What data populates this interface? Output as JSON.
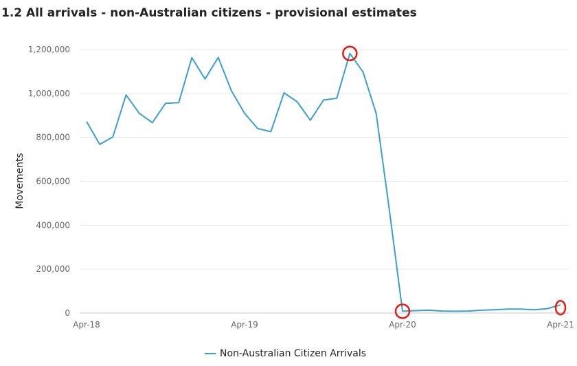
{
  "title": "1.2 All arrivals - non-Australian citizens - provisional estimates",
  "colors": {
    "series": "#3a9fd0",
    "highlight": "#e8190f",
    "grid": "#e6e6e6"
  },
  "legend": {
    "label": "Non-Australian Citizen Arrivals"
  },
  "chart_data": {
    "type": "line",
    "title": "1.2 All arrivals - non-Australian citizens - provisional estimates",
    "xlabel": "",
    "ylabel": "Movements",
    "ylim": [
      0,
      1200000
    ],
    "yticks": [
      0,
      200000,
      400000,
      600000,
      800000,
      1000000,
      1200000
    ],
    "ytick_labels": [
      "0",
      "200,000",
      "400,000",
      "600,000",
      "800,000",
      "1,000,000",
      "1,200,000"
    ],
    "xtick_labels": [
      "Apr-18",
      "Apr-19",
      "Apr-20",
      "Apr-21"
    ],
    "xtick_index": [
      0,
      12,
      24,
      36
    ],
    "grid": true,
    "legend_position": "bottom",
    "x": [
      "Apr-18",
      "May-18",
      "Jun-18",
      "Jul-18",
      "Aug-18",
      "Sep-18",
      "Oct-18",
      "Nov-18",
      "Dec-18",
      "Jan-19",
      "Feb-19",
      "Mar-19",
      "Apr-19",
      "May-19",
      "Jun-19",
      "Jul-19",
      "Aug-19",
      "Sep-19",
      "Oct-19",
      "Nov-19",
      "Dec-19",
      "Jan-20",
      "Feb-20",
      "Mar-20",
      "Apr-20",
      "May-20",
      "Jun-20",
      "Jul-20",
      "Aug-20",
      "Sep-20",
      "Oct-20",
      "Nov-20",
      "Dec-20",
      "Jan-21",
      "Feb-21",
      "Mar-21",
      "Apr-21"
    ],
    "series": [
      {
        "name": "Non-Australian Citizen Arrivals",
        "values": [
          872000,
          768000,
          802000,
          993000,
          910000,
          867000,
          955000,
          958000,
          1163000,
          1066000,
          1164000,
          1013000,
          910000,
          840000,
          826000,
          1003000,
          962000,
          878000,
          970000,
          978000,
          1182000,
          1098000,
          908000,
          470000,
          8000,
          11000,
          13000,
          9000,
          8000,
          9000,
          13000,
          15000,
          18000,
          18000,
          15000,
          20000,
          37000
        ]
      }
    ],
    "highlighted_points": [
      "Dec-19",
      "Apr-20",
      "Apr-21"
    ]
  }
}
